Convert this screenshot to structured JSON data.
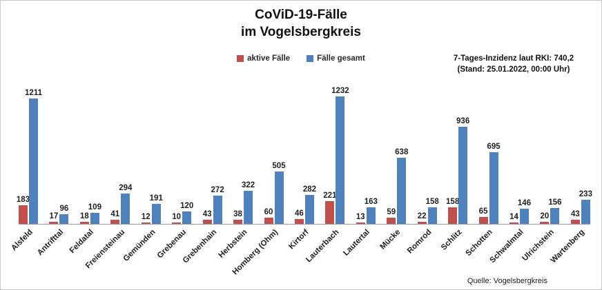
{
  "title": {
    "line1": "CoViD-19-Fälle",
    "line2": "im Vogelsbergkreis"
  },
  "legend": [
    {
      "label": "aktive Fälle",
      "color": "#C0504D"
    },
    {
      "label": "Fälle gesamt",
      "color": "#4F81BD"
    }
  ],
  "annotation": {
    "line1": "7-Tages-Inzidenz laut RKI: 740,2",
    "line2": "(Stand: 25.01.2022, 00:00 Uhr)"
  },
  "source": "Quelle: Vogelsbergkreis",
  "chart_data": {
    "type": "bar",
    "title": "CoViD-19-Fälle im Vogelsbergkreis",
    "categories": [
      "Alsfeld",
      "Antrifttal",
      "Feldatal",
      "Freiensteinau",
      "Gemünden",
      "Grebenau",
      "Grebenhain",
      "Herbstein",
      "Homberg (Ohm)",
      "Kirtorf",
      "Lauterbach",
      "Lautertal",
      "Mücke",
      "Romrod",
      "Schlitz",
      "Schotten",
      "Schwalmtal",
      "Ulrichstein",
      "Wartenberg"
    ],
    "series": [
      {
        "name": "aktive Fälle",
        "color": "#C0504D",
        "values": [
          183,
          17,
          18,
          41,
          12,
          10,
          43,
          38,
          60,
          46,
          221,
          13,
          59,
          22,
          158,
          65,
          14,
          20,
          43
        ]
      },
      {
        "name": "Fälle gesamt",
        "color": "#4F81BD",
        "values": [
          1211,
          96,
          109,
          294,
          191,
          120,
          272,
          322,
          505,
          282,
          1232,
          163,
          638,
          158,
          936,
          695,
          146,
          156,
          233
        ]
      }
    ],
    "xlabel": "",
    "ylabel": "",
    "ylim": [
      0,
      1232
    ],
    "grid": false,
    "legend_position": "top",
    "value_labels": true
  }
}
